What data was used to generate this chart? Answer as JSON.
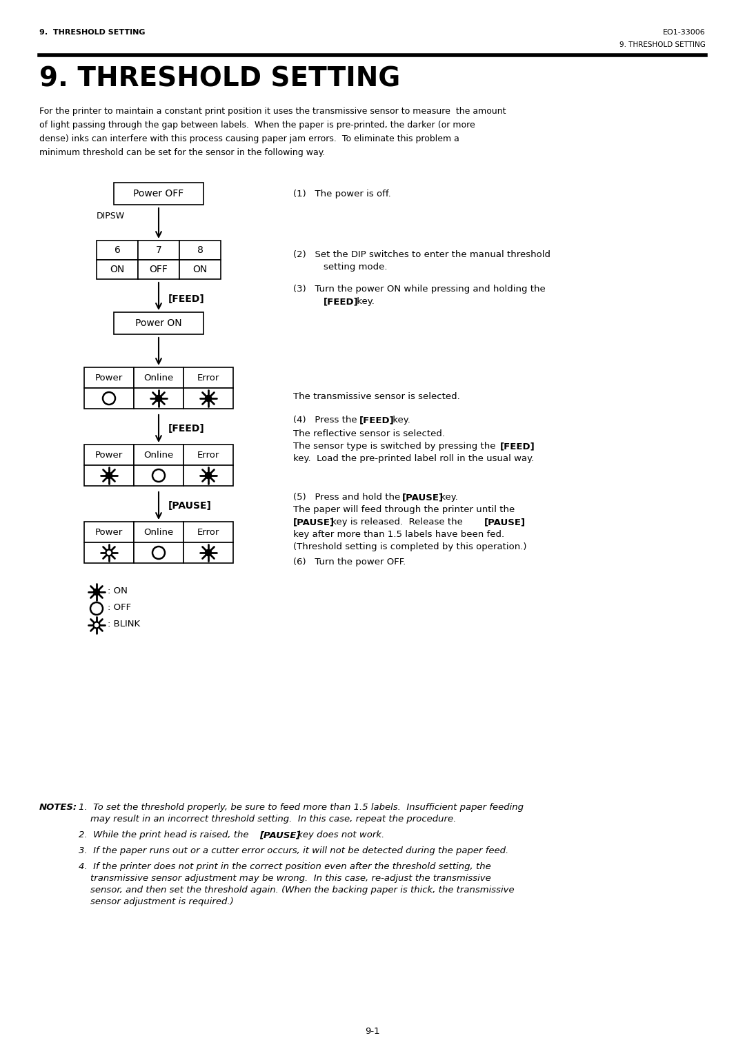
{
  "header_left": "9.  THRESHOLD SETTING",
  "header_right": "EO1-33006",
  "header_right2": "9. THRESHOLD SETTING",
  "title": "9. THRESHOLD SETTING",
  "bg_color": "#ffffff",
  "text_color": "#000000",
  "page_num": "9-1"
}
